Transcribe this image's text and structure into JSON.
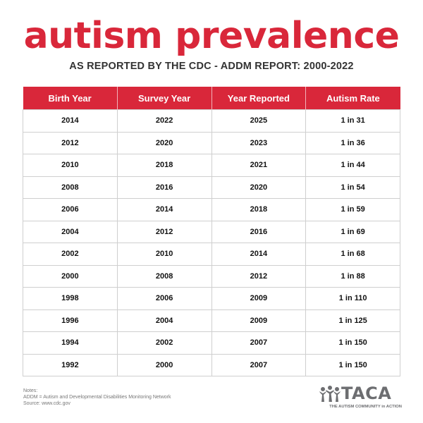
{
  "title": "autism prevalence",
  "subtitle": "AS REPORTED BY THE CDC - ADDM REPORT: 2000-2022",
  "colors": {
    "accent": "#d9273a",
    "gray": "#6d6e71"
  },
  "table": {
    "headers": [
      "Birth Year",
      "Survey Year",
      "Year Reported",
      "Autism Rate"
    ],
    "rows": [
      [
        "2014",
        "2022",
        "2025",
        "1 in 31"
      ],
      [
        "2012",
        "2020",
        "2023",
        "1 in 36"
      ],
      [
        "2010",
        "2018",
        "2021",
        "1 in 44"
      ],
      [
        "2008",
        "2016",
        "2020",
        "1 in 54"
      ],
      [
        "2006",
        "2014",
        "2018",
        "1 in 59"
      ],
      [
        "2004",
        "2012",
        "2016",
        "1 in 69"
      ],
      [
        "2002",
        "2010",
        "2014",
        "1 in 68"
      ],
      [
        "2000",
        "2008",
        "2012",
        "1 in 88"
      ],
      [
        "1998",
        "2006",
        "2009",
        "1 in 110"
      ],
      [
        "1996",
        "2004",
        "2009",
        "1 in 125"
      ],
      [
        "1994",
        "2002",
        "2007",
        "1 in 150"
      ],
      [
        "1992",
        "2000",
        "2007",
        "1 in 150"
      ]
    ]
  },
  "notes": {
    "label": "Notes:",
    "line1": "ADDM = Autism and Developmental Disabilities Monitoring Network",
    "line2": "Source: www.cdc.gov"
  },
  "logo": {
    "icon": "people-figures-icon",
    "wordmark": "TACA",
    "tagline": "THE AUTISM COMMUNITY in ACTION"
  }
}
